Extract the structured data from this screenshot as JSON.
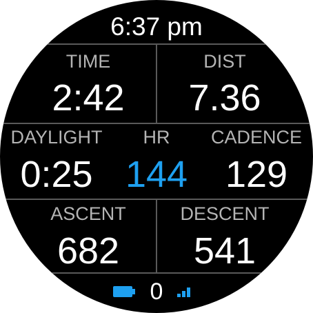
{
  "clock": {
    "time": "6:37 pm"
  },
  "fields": {
    "time": {
      "label": "TIME",
      "value": "2:42"
    },
    "dist": {
      "label": "DIST",
      "value": "7.36"
    },
    "daylight": {
      "label": "DAYLIGHT",
      "value": "0:25"
    },
    "hr": {
      "label": "HR",
      "value": "144"
    },
    "cadence": {
      "label": "CADENCE",
      "value": "129"
    },
    "ascent": {
      "label": "ASCENT",
      "value": "682"
    },
    "descent": {
      "label": "DESCENT",
      "value": "541"
    }
  },
  "status_bar": {
    "battery_icon": "battery-full-icon",
    "notification_count": "0",
    "signal_icon": "signal-strength-icon"
  },
  "colors": {
    "background": "#000000",
    "text": "#ffffff",
    "label": "#b4b4b4",
    "accent": "#1ea0f0",
    "divider": "#5a5a5a"
  }
}
